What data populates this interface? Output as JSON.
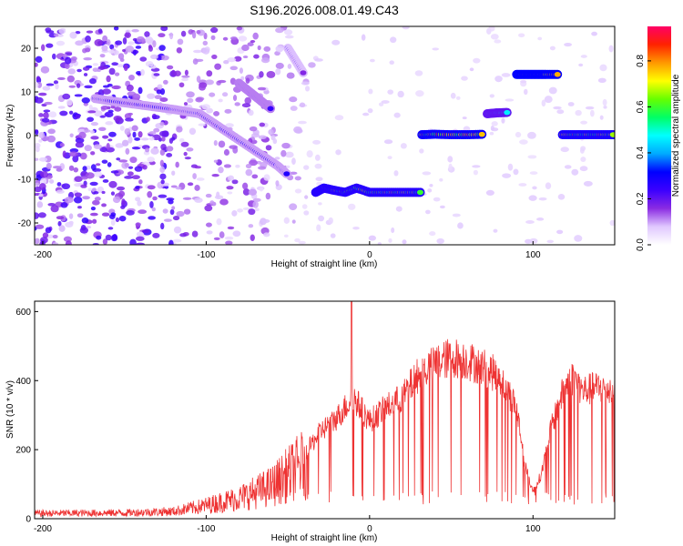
{
  "title": "S196.2026.008.01.49.C43",
  "chart_data": [
    {
      "type": "heatmap",
      "xlabel": "Height of straight line (km)",
      "ylabel": "Frequency (Hz)",
      "xlim": [
        -205,
        150
      ],
      "ylim": [
        -25,
        25
      ],
      "x_ticks": [
        -200,
        -100,
        0,
        100
      ],
      "y_ticks": [
        -20,
        -10,
        0,
        10,
        20
      ],
      "colorbar": {
        "label": "Normalized spectral amplitude",
        "range": [
          0,
          0.95
        ],
        "ticks": [
          0.0,
          0.2,
          0.4,
          0.6,
          0.8
        ],
        "colors": [
          "#ffffff",
          "#e0c8ff",
          "#8a2be2",
          "#3b00ff",
          "#0000ff",
          "#00aaff",
          "#00ffff",
          "#00ff66",
          "#66ff00",
          "#ffff00",
          "#ff9900",
          "#ff2200",
          "#ff0066"
        ]
      },
      "tracks": [
        {
          "x": [
            -168,
            -160,
            -150,
            -140,
            -130,
            -120,
            -112,
            -104,
            -96,
            -88,
            -80,
            -72,
            -64,
            -56,
            -50
          ],
          "y": [
            8.5,
            8,
            7.5,
            7,
            6.5,
            6,
            5.5,
            5,
            3,
            1,
            -1,
            -3,
            -5,
            -7,
            -9
          ],
          "amp": 0.3
        },
        {
          "x": [
            -80,
            -75,
            -70,
            -65,
            -60
          ],
          "y": [
            12,
            10.5,
            9,
            7.5,
            6
          ],
          "amp": 0.35
        },
        {
          "x": [
            -50,
            -45,
            -40
          ],
          "y": [
            20,
            17,
            14
          ],
          "amp": 0.25
        },
        {
          "x": [
            -33,
            -28,
            -22,
            -15,
            -8,
            0,
            8,
            16,
            24,
            32
          ],
          "y": [
            -13,
            -12,
            -12.5,
            -13,
            -12,
            -13,
            -13,
            -13,
            -13,
            -13
          ],
          "amp": 0.8
        },
        {
          "x": [
            32,
            40,
            50,
            60,
            70
          ],
          "y": [
            0.2,
            0.3,
            0.2,
            0.2,
            0.3
          ],
          "amp": 0.9
        },
        {
          "x": [
            72,
            78,
            85
          ],
          "y": [
            5,
            5.2,
            5.3
          ],
          "amp": 0.6
        },
        {
          "x": [
            90,
            96,
            102,
            108,
            116
          ],
          "y": [
            14,
            14,
            14,
            14,
            14
          ],
          "amp": 0.95
        },
        {
          "x": [
            118,
            126,
            134,
            142,
            150
          ],
          "y": [
            0.2,
            0.2,
            0.2,
            0.2,
            0.2
          ],
          "amp": 0.85
        }
      ]
    },
    {
      "type": "line",
      "xlabel": "Height of straight line (km)",
      "ylabel": "SNR (10 * v/v)",
      "xlim": [
        -205,
        150
      ],
      "ylim": [
        0,
        630
      ],
      "x_ticks": [
        -200,
        -100,
        0,
        100
      ],
      "y_ticks": [
        0,
        200,
        400,
        600
      ],
      "color": "#ee3333",
      "spike": {
        "x": -11,
        "y": 630
      },
      "envelope": {
        "x": [
          -205,
          -150,
          -120,
          -100,
          -80,
          -60,
          -40,
          -30,
          -20,
          -10,
          0,
          10,
          20,
          30,
          40,
          50,
          60,
          70,
          80,
          90,
          95,
          100,
          105,
          110,
          115,
          120,
          125,
          130,
          140,
          150
        ],
        "y": [
          18,
          20,
          25,
          45,
          70,
          110,
          190,
          260,
          300,
          360,
          290,
          330,
          360,
          430,
          460,
          480,
          470,
          450,
          420,
          330,
          160,
          80,
          130,
          250,
          330,
          400,
          420,
          380,
          390,
          380
        ]
      }
    }
  ]
}
